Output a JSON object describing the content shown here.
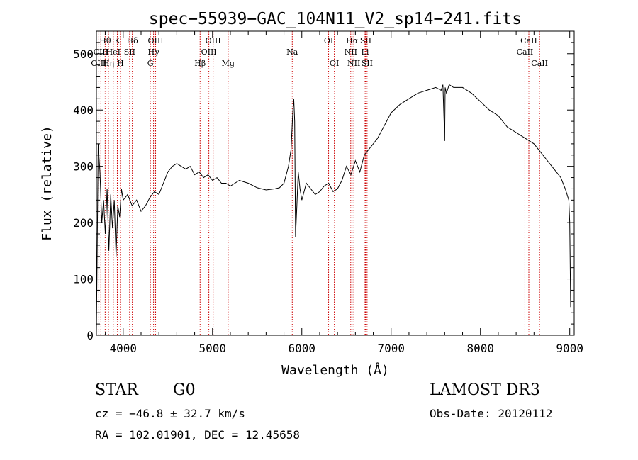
{
  "chart_data": {
    "type": "line",
    "title": "spec−55939−GAC_104N11_V2_sp14−241.fits",
    "xlabel": "Wavelength (Å)",
    "ylabel": "Flux (relative)",
    "xlim": [
      3700,
      9050
    ],
    "ylim": [
      0,
      540
    ],
    "xticks": [
      4000,
      5000,
      6000,
      7000,
      8000,
      9000
    ],
    "yticks": [
      0,
      100,
      200,
      300,
      400,
      500
    ],
    "series": [
      {
        "name": "flux",
        "x": [
          3700,
          3720,
          3740,
          3760,
          3780,
          3800,
          3820,
          3840,
          3860,
          3880,
          3900,
          3920,
          3940,
          3960,
          3980,
          4000,
          4050,
          4100,
          4150,
          4200,
          4250,
          4300,
          4350,
          4400,
          4450,
          4500,
          4550,
          4600,
          4650,
          4700,
          4750,
          4800,
          4850,
          4900,
          4950,
          5000,
          5050,
          5100,
          5150,
          5200,
          5300,
          5400,
          5500,
          5600,
          5700,
          5750,
          5800,
          5850,
          5880,
          5900,
          5910,
          5920,
          5930,
          5945,
          5960,
          5980,
          6000,
          6050,
          6100,
          6150,
          6200,
          6250,
          6300,
          6350,
          6400,
          6450,
          6500,
          6550,
          6600,
          6650,
          6700,
          6750,
          6800,
          6850,
          6900,
          6950,
          7000,
          7100,
          7200,
          7300,
          7400,
          7500,
          7560,
          7580,
          7600,
          7605,
          7620,
          7650,
          7700,
          7800,
          7900,
          8000,
          8100,
          8200,
          8300,
          8400,
          8500,
          8600,
          8700,
          8800,
          8850,
          8900,
          8950,
          8990,
          9000,
          9010
        ],
        "y": [
          5,
          340,
          290,
          200,
          240,
          180,
          260,
          150,
          250,
          190,
          240,
          140,
          230,
          210,
          260,
          240,
          250,
          230,
          240,
          220,
          230,
          245,
          255,
          250,
          270,
          290,
          300,
          305,
          300,
          295,
          300,
          285,
          290,
          280,
          285,
          275,
          280,
          270,
          270,
          265,
          275,
          270,
          262,
          258,
          260,
          262,
          270,
          300,
          330,
          400,
          420,
          380,
          175,
          230,
          290,
          260,
          240,
          270,
          260,
          250,
          255,
          265,
          270,
          255,
          260,
          275,
          300,
          285,
          310,
          290,
          320,
          330,
          340,
          350,
          365,
          380,
          395,
          410,
          420,
          430,
          435,
          440,
          435,
          445,
          345,
          440,
          430,
          445,
          440,
          440,
          430,
          415,
          400,
          390,
          370,
          360,
          350,
          340,
          320,
          300,
          290,
          280,
          260,
          240,
          200,
          50
        ],
        "color": "#000000"
      }
    ],
    "lines": [
      {
        "label": "Hθ",
        "wave": 3798,
        "row": 0
      },
      {
        "label": "CIII",
        "wave": 3750,
        "row": 1
      },
      {
        "label": "OIII",
        "wave": 3727,
        "row": 2
      },
      {
        "label": "K",
        "wave": 3934,
        "row": 0
      },
      {
        "label": "HeI",
        "wave": 3889,
        "row": 1
      },
      {
        "label": "Hη",
        "wave": 3835,
        "row": 2
      },
      {
        "label": "Hδ",
        "wave": 4102,
        "row": 0
      },
      {
        "label": "SII",
        "wave": 4072,
        "row": 1
      },
      {
        "label": "H",
        "wave": 3969,
        "row": 2
      },
      {
        "label": "OIII",
        "wave": 4363,
        "row": 0
      },
      {
        "label": "Hγ",
        "wave": 4340,
        "row": 1
      },
      {
        "label": "G",
        "wave": 4304,
        "row": 2
      },
      {
        "label": "OIII",
        "wave": 5007,
        "row": 0
      },
      {
        "label": "OIII",
        "wave": 4959,
        "row": 1
      },
      {
        "label": "Hβ",
        "wave": 4861,
        "row": 2
      },
      {
        "label": "Mg",
        "wave": 5175,
        "row": 2
      },
      {
        "label": "Na",
        "wave": 5893,
        "row": 1
      },
      {
        "label": "OI",
        "wave": 6300,
        "row": 0
      },
      {
        "label": "OI",
        "wave": 6364,
        "row": 2
      },
      {
        "label": "Hα",
        "wave": 6563,
        "row": 0
      },
      {
        "label": "SII",
        "wave": 6716,
        "row": 0
      },
      {
        "label": "NII",
        "wave": 6548,
        "row": 1
      },
      {
        "label": "Li",
        "wave": 6708,
        "row": 1
      },
      {
        "label": "NII",
        "wave": 6583,
        "row": 2
      },
      {
        "label": "SII",
        "wave": 6731,
        "row": 2
      },
      {
        "label": "CaII",
        "wave": 8542,
        "row": 0
      },
      {
        "label": "CaII",
        "wave": 8498,
        "row": 1
      },
      {
        "label": "CaII",
        "wave": 8662,
        "row": 2
      }
    ],
    "line_color": "#cc0000"
  },
  "info": {
    "class_label": "STAR",
    "subclass": "G0",
    "survey": "LAMOST DR3",
    "cz": "cz = −46.8 ± 32.7 km/s",
    "obs_date": "Obs-Date: 20120112",
    "coords": "RA = 102.01901, DEC =  12.45658"
  }
}
